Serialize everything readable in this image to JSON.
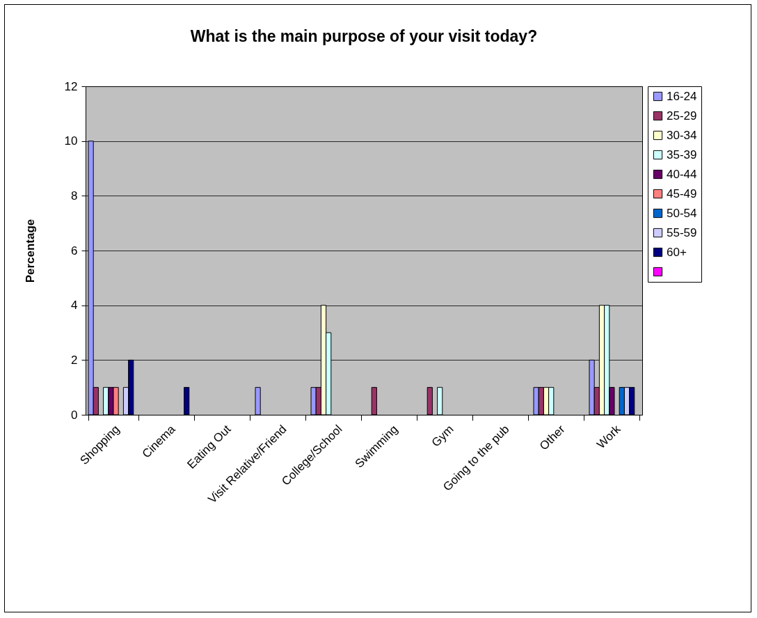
{
  "chart_data": {
    "type": "bar",
    "title": "What is the main purpose of your visit today?",
    "ylabel": "Percentage",
    "categories": [
      "Shopping",
      "Cinema",
      "Eating Out",
      "Visit Relative/Friend",
      "College/School",
      "Swimming",
      "Gym",
      "Going to the pub",
      "Other",
      "Work"
    ],
    "series": [
      {
        "name": "16-24",
        "color": "#9999ff",
        "values": [
          10,
          null,
          null,
          1,
          1,
          null,
          null,
          null,
          1,
          2
        ]
      },
      {
        "name": "25-29",
        "color": "#993366",
        "values": [
          1,
          null,
          null,
          null,
          1,
          1,
          1,
          null,
          1,
          1
        ]
      },
      {
        "name": "30-34",
        "color": "#ffffcc",
        "values": [
          null,
          null,
          null,
          null,
          4,
          null,
          null,
          null,
          1,
          4
        ]
      },
      {
        "name": "35-39",
        "color": "#ccffff",
        "values": [
          1,
          null,
          null,
          null,
          3,
          null,
          1,
          null,
          1,
          4
        ]
      },
      {
        "name": "40-44",
        "color": "#660066",
        "values": [
          1,
          null,
          null,
          null,
          null,
          null,
          null,
          null,
          null,
          1
        ]
      },
      {
        "name": "45-49",
        "color": "#ff8080",
        "values": [
          1,
          null,
          null,
          null,
          null,
          null,
          null,
          null,
          null,
          null
        ]
      },
      {
        "name": "50-54",
        "color": "#0066cc",
        "values": [
          null,
          null,
          null,
          null,
          null,
          null,
          null,
          null,
          null,
          1
        ]
      },
      {
        "name": "55-59",
        "color": "#ccccff",
        "values": [
          1,
          null,
          null,
          null,
          null,
          null,
          null,
          null,
          null,
          1
        ]
      },
      {
        "name": "60+",
        "color": "#000080",
        "values": [
          2,
          1,
          null,
          null,
          null,
          null,
          null,
          null,
          null,
          1
        ]
      },
      {
        "color": "#ff00ff",
        "values": [
          null,
          null,
          null,
          null,
          null,
          null,
          null,
          null,
          null,
          null
        ]
      }
    ],
    "ylim": [
      0,
      12
    ],
    "yticks": [
      0,
      2,
      4,
      6,
      8,
      10,
      12
    ],
    "grid": "y",
    "legend": "right"
  }
}
